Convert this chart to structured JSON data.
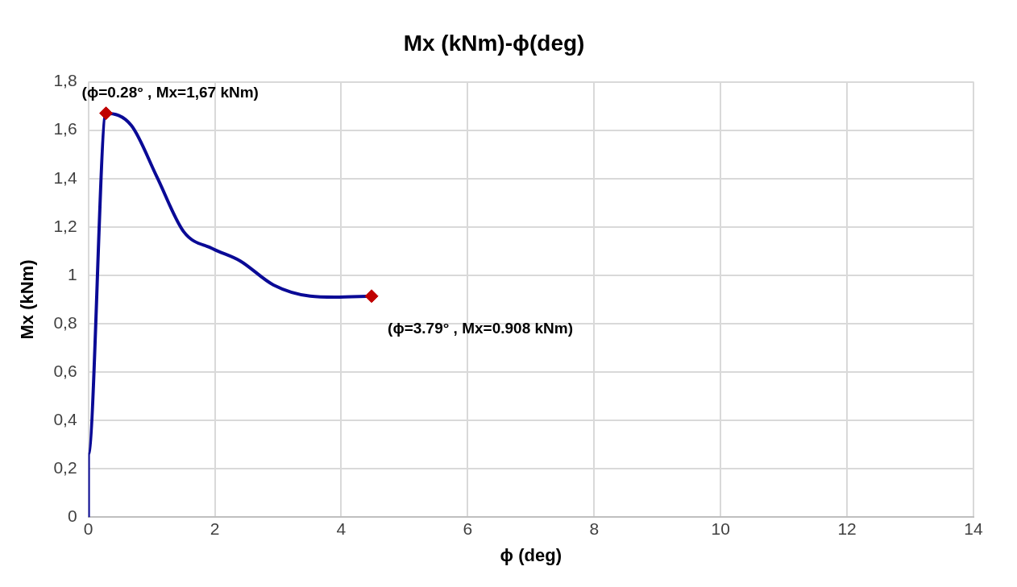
{
  "chart_data": {
    "type": "line",
    "title": "Mx (kNm)-ϕ(deg)",
    "xlabel": "ϕ (deg)",
    "ylabel": "Mx (kNm)",
    "xlim": [
      0,
      14
    ],
    "xticks": [
      0,
      2,
      4,
      6,
      8,
      10,
      12,
      14
    ],
    "ylim": [
      0,
      1.8
    ],
    "yticks": [
      0,
      {
        "value": 0.2,
        "label": "0,2"
      },
      {
        "value": 0.4,
        "label": "0,4"
      },
      {
        "value": 0.6,
        "label": "0,6"
      },
      {
        "value": 0.8,
        "label": "0,8"
      },
      1,
      {
        "value": 1.2,
        "label": "1,2"
      },
      {
        "value": 1.4,
        "label": "1,4"
      },
      {
        "value": 1.6,
        "label": "1,6"
      },
      {
        "value": 1.8,
        "label": "1,8"
      }
    ],
    "grid": true,
    "legend": false,
    "series": [
      {
        "color": "#0a0a96",
        "marker": "none",
        "x": [
          0,
          0,
          0.28,
          0.68,
          1.08,
          1.51,
          1.97,
          2.4,
          2.93,
          3.51,
          3.9,
          4.48
        ],
        "values": [
          0,
          0.26,
          1.67,
          1.62,
          1.41,
          1.18,
          1.11,
          1.06,
          0.96,
          0.914,
          0.91,
          0.914
        ]
      },
      {
        "type": "scatter",
        "color": "#c00000",
        "marker": "diamond",
        "x": [
          0.28,
          4.48
        ],
        "values": [
          1.67,
          0.914
        ]
      }
    ],
    "annotations": [
      {
        "text": "(ϕ=0.28° , Mx=1,67 kNm)",
        "x": 0.28,
        "y": 1.67
      },
      {
        "text": "(ϕ=3.79° , Mx=0.908 kNm)",
        "x": 4.48,
        "y": 0.914
      }
    ]
  }
}
